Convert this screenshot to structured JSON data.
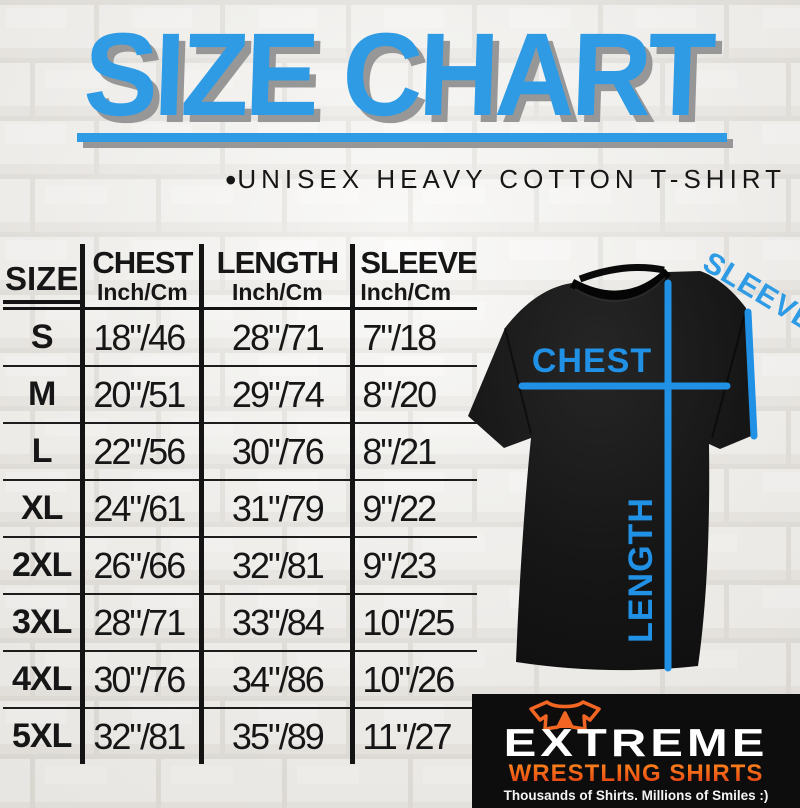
{
  "title": {
    "text": "SIZE CHART"
  },
  "subtitle": {
    "bullet": "•",
    "text": "UNISEX HEAVY COTTON T-SHIRT"
  },
  "table": {
    "size_header": "SIZE",
    "unit_label": "Inch/Cm",
    "columns": [
      {
        "label": "CHEST"
      },
      {
        "label": "LENGTH"
      },
      {
        "label": "SLEEVE"
      }
    ],
    "rows": [
      {
        "size": "S",
        "chest": "18\"/46",
        "length": "28\"/71",
        "sleeve": "7\"/18"
      },
      {
        "size": "M",
        "chest": "20\"/51",
        "length": "29\"/74",
        "sleeve": "8\"/20"
      },
      {
        "size": "L",
        "chest": "22\"/56",
        "length": "30\"/76",
        "sleeve": "8\"/21"
      },
      {
        "size": "XL",
        "chest": "24\"/61",
        "length": "31\"/79",
        "sleeve": "9\"/22"
      },
      {
        "size": "2XL",
        "chest": "26\"/66",
        "length": "32\"/81",
        "sleeve": "9\"/23"
      },
      {
        "size": "3XL",
        "chest": "28\"/71",
        "length": "33\"/84",
        "sleeve": "10\"/25"
      },
      {
        "size": "4XL",
        "chest": "30\"/76",
        "length": "34\"/86",
        "sleeve": "10\"/26"
      },
      {
        "size": "5XL",
        "chest": "32\"/81",
        "length": "35\"/89",
        "sleeve": "11\"/27"
      }
    ]
  },
  "diagram": {
    "chest_label": "CHEST",
    "length_label": "LENGTH",
    "sleeve_label": "SLEEVE"
  },
  "logo": {
    "brand": "EXTREME",
    "sub": "WRESTLING SHIRTS",
    "tagline": "Thousands of Shirts. Millions of Smiles :)"
  },
  "colors": {
    "accent_blue": "#2e9be4",
    "shadow_gray": "#979797",
    "line_blue": "#2191e6",
    "logo_orange": "#ff8a1c",
    "logo_red": "#e23912"
  },
  "chart_data": {
    "type": "table",
    "title": "SIZE CHART",
    "subtitle": "UNISEX HEAVY COTTON T-SHIRT",
    "unit": "Inch/Cm",
    "columns": [
      "SIZE",
      "CHEST (Inch/Cm)",
      "LENGTH (Inch/Cm)",
      "SLEEVE (Inch/Cm)"
    ],
    "rows": [
      [
        "S",
        "18\"/46",
        "28\"/71",
        "7\"/18"
      ],
      [
        "M",
        "20\"/51",
        "29\"/74",
        "8\"/20"
      ],
      [
        "L",
        "22\"/56",
        "30\"/76",
        "8\"/21"
      ],
      [
        "XL",
        "24\"/61",
        "31\"/79",
        "9\"/22"
      ],
      [
        "2XL",
        "26\"/66",
        "32\"/81",
        "9\"/23"
      ],
      [
        "3XL",
        "28\"/71",
        "33\"/84",
        "10\"/25"
      ],
      [
        "4XL",
        "30\"/76",
        "34\"/86",
        "10\"/26"
      ],
      [
        "5XL",
        "32\"/81",
        "35\"/89",
        "11\"/27"
      ]
    ]
  }
}
